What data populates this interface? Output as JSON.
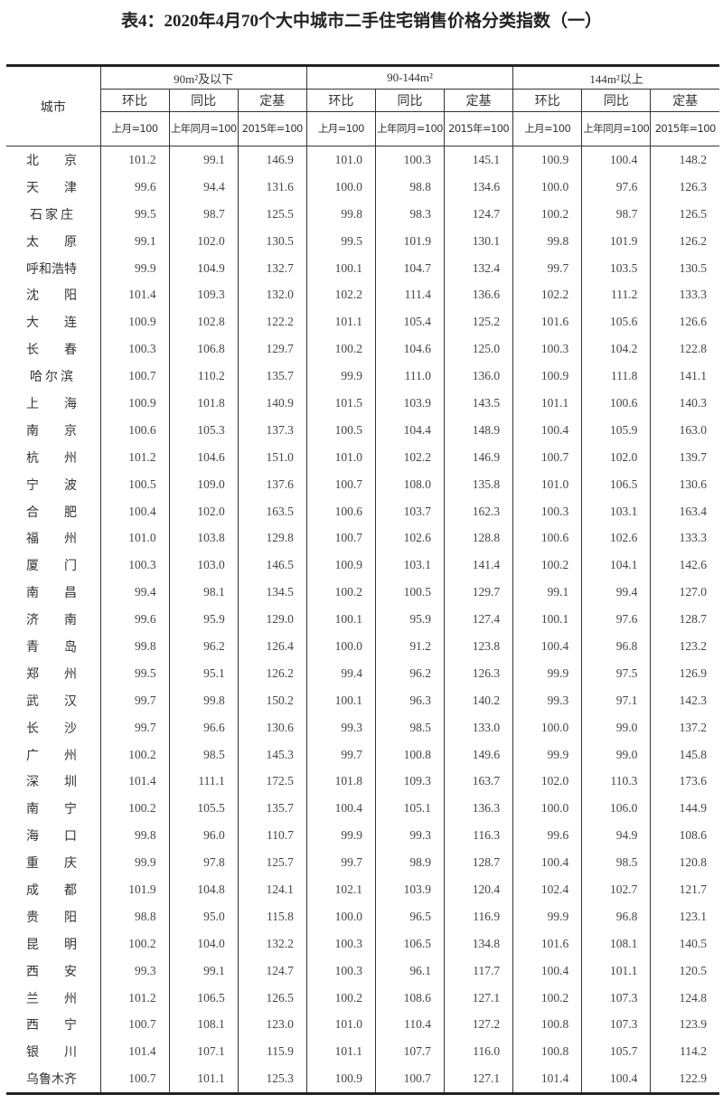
{
  "title": "表4：2020年4月70个大中城市二手住宅销售价格分类指数（一）",
  "header": {
    "city": "城市",
    "groups": [
      "90m²及以下",
      "90-144m²",
      "144m²以上"
    ],
    "sub": [
      "环比",
      "同比",
      "定基"
    ],
    "base": [
      "上月=100",
      "上年同月=100",
      "2015年=100"
    ]
  },
  "rows": [
    {
      "city": "北京",
      "v": [
        "101.2",
        "99.1",
        "146.9",
        "101.0",
        "100.3",
        "145.1",
        "100.9",
        "100.4",
        "148.2"
      ]
    },
    {
      "city": "天津",
      "v": [
        "99.6",
        "94.4",
        "131.6",
        "100.0",
        "98.8",
        "134.6",
        "100.0",
        "97.6",
        "126.3"
      ]
    },
    {
      "city": "石家庄",
      "v": [
        "99.5",
        "98.7",
        "125.5",
        "99.8",
        "98.3",
        "124.7",
        "100.2",
        "98.7",
        "126.5"
      ]
    },
    {
      "city": "太原",
      "v": [
        "99.1",
        "102.0",
        "130.5",
        "99.5",
        "101.9",
        "130.1",
        "99.8",
        "101.9",
        "126.2"
      ]
    },
    {
      "city": "呼和浩特",
      "v": [
        "99.9",
        "104.9",
        "132.7",
        "100.1",
        "104.7",
        "132.4",
        "99.7",
        "103.5",
        "130.5"
      ]
    },
    {
      "city": "沈阳",
      "v": [
        "101.4",
        "109.3",
        "132.0",
        "102.2",
        "111.4",
        "136.6",
        "102.2",
        "111.2",
        "133.3"
      ]
    },
    {
      "city": "大连",
      "v": [
        "100.9",
        "102.8",
        "122.2",
        "101.1",
        "105.4",
        "125.2",
        "101.6",
        "105.6",
        "126.6"
      ]
    },
    {
      "city": "长春",
      "v": [
        "100.3",
        "106.8",
        "129.7",
        "100.2",
        "104.6",
        "125.0",
        "100.3",
        "104.2",
        "122.8"
      ]
    },
    {
      "city": "哈尔滨",
      "v": [
        "100.7",
        "110.2",
        "135.7",
        "99.9",
        "111.0",
        "136.0",
        "100.9",
        "111.8",
        "141.1"
      ]
    },
    {
      "city": "上海",
      "v": [
        "100.9",
        "101.8",
        "140.9",
        "101.5",
        "103.9",
        "143.5",
        "101.1",
        "100.6",
        "140.3"
      ]
    },
    {
      "city": "南京",
      "v": [
        "100.6",
        "105.3",
        "137.3",
        "100.5",
        "104.4",
        "148.9",
        "100.4",
        "105.9",
        "163.0"
      ]
    },
    {
      "city": "杭州",
      "v": [
        "101.2",
        "104.6",
        "151.0",
        "101.0",
        "102.2",
        "146.9",
        "100.7",
        "102.0",
        "139.7"
      ]
    },
    {
      "city": "宁波",
      "v": [
        "100.5",
        "109.0",
        "137.6",
        "100.7",
        "108.0",
        "135.8",
        "101.0",
        "106.5",
        "130.6"
      ]
    },
    {
      "city": "合肥",
      "v": [
        "100.4",
        "102.0",
        "163.5",
        "100.6",
        "103.7",
        "162.3",
        "100.3",
        "103.1",
        "163.4"
      ]
    },
    {
      "city": "福州",
      "v": [
        "101.0",
        "103.8",
        "129.8",
        "100.7",
        "102.6",
        "128.8",
        "100.6",
        "102.6",
        "133.3"
      ]
    },
    {
      "city": "厦门",
      "v": [
        "100.3",
        "103.0",
        "146.5",
        "100.9",
        "103.1",
        "141.4",
        "100.2",
        "104.1",
        "142.6"
      ]
    },
    {
      "city": "南昌",
      "v": [
        "99.4",
        "98.1",
        "134.5",
        "100.2",
        "100.5",
        "129.7",
        "99.1",
        "99.4",
        "127.0"
      ]
    },
    {
      "city": "济南",
      "v": [
        "99.6",
        "95.9",
        "129.0",
        "100.1",
        "95.9",
        "127.4",
        "100.1",
        "97.6",
        "128.7"
      ]
    },
    {
      "city": "青岛",
      "v": [
        "99.8",
        "96.2",
        "126.4",
        "100.0",
        "91.2",
        "123.8",
        "100.4",
        "96.8",
        "123.2"
      ]
    },
    {
      "city": "郑州",
      "v": [
        "99.5",
        "95.1",
        "126.2",
        "99.4",
        "96.2",
        "126.3",
        "99.9",
        "97.5",
        "126.9"
      ]
    },
    {
      "city": "武汉",
      "v": [
        "99.7",
        "99.8",
        "150.2",
        "100.1",
        "96.3",
        "140.2",
        "99.3",
        "97.1",
        "142.3"
      ]
    },
    {
      "city": "长沙",
      "v": [
        "99.7",
        "96.6",
        "130.6",
        "99.3",
        "98.5",
        "133.0",
        "100.0",
        "99.0",
        "137.2"
      ]
    },
    {
      "city": "广州",
      "v": [
        "100.2",
        "98.5",
        "145.3",
        "99.7",
        "100.8",
        "149.6",
        "99.9",
        "99.0",
        "145.8"
      ]
    },
    {
      "city": "深圳",
      "v": [
        "101.4",
        "111.1",
        "172.5",
        "101.8",
        "109.3",
        "163.7",
        "102.0",
        "110.3",
        "173.6"
      ]
    },
    {
      "city": "南宁",
      "v": [
        "100.2",
        "105.5",
        "135.7",
        "100.4",
        "105.1",
        "136.3",
        "100.0",
        "106.0",
        "144.9"
      ]
    },
    {
      "city": "海口",
      "v": [
        "99.8",
        "96.0",
        "110.7",
        "99.9",
        "99.3",
        "116.3",
        "99.6",
        "94.9",
        "108.6"
      ]
    },
    {
      "city": "重庆",
      "v": [
        "99.9",
        "97.8",
        "125.7",
        "99.7",
        "98.9",
        "128.7",
        "100.4",
        "98.5",
        "120.8"
      ]
    },
    {
      "city": "成都",
      "v": [
        "101.9",
        "104.8",
        "124.1",
        "102.1",
        "103.9",
        "120.4",
        "102.4",
        "102.7",
        "121.7"
      ]
    },
    {
      "city": "贵阳",
      "v": [
        "98.8",
        "95.0",
        "115.8",
        "100.0",
        "96.5",
        "116.9",
        "99.9",
        "96.8",
        "123.1"
      ]
    },
    {
      "city": "昆明",
      "v": [
        "100.2",
        "104.0",
        "132.2",
        "100.3",
        "106.5",
        "134.8",
        "101.6",
        "108.1",
        "140.5"
      ]
    },
    {
      "city": "西安",
      "v": [
        "99.3",
        "99.1",
        "124.7",
        "100.3",
        "96.1",
        "117.7",
        "100.4",
        "101.1",
        "120.5"
      ]
    },
    {
      "city": "兰州",
      "v": [
        "101.2",
        "106.5",
        "126.5",
        "100.2",
        "108.6",
        "127.1",
        "100.2",
        "107.3",
        "124.8"
      ]
    },
    {
      "city": "西宁",
      "v": [
        "100.7",
        "108.1",
        "123.0",
        "101.0",
        "110.4",
        "127.2",
        "100.8",
        "107.3",
        "123.9"
      ]
    },
    {
      "city": "银川",
      "v": [
        "101.4",
        "107.1",
        "115.9",
        "101.1",
        "107.7",
        "116.0",
        "100.8",
        "105.7",
        "114.2"
      ]
    },
    {
      "city": "乌鲁木齐",
      "v": [
        "100.7",
        "101.1",
        "125.3",
        "100.9",
        "100.7",
        "127.1",
        "101.4",
        "100.4",
        "122.9"
      ]
    }
  ]
}
